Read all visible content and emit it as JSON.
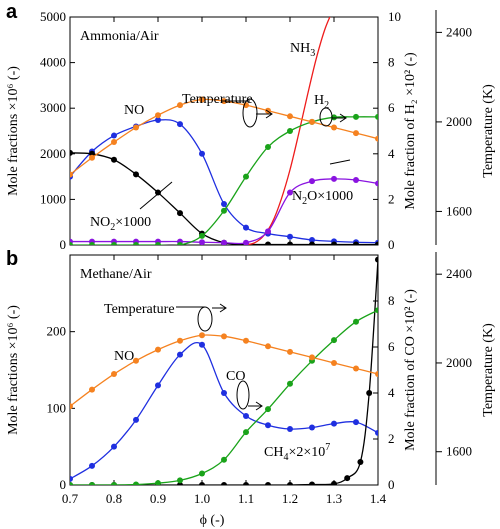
{
  "chart_data": [
    {
      "panel": "a",
      "type": "line",
      "title": "Ammonia/Air",
      "xlabel": "",
      "xlim": [
        0.7,
        1.4
      ],
      "axes": {
        "left": {
          "label": "Mole fractions ×10⁶ (-)",
          "lim": [
            0,
            5000
          ],
          "ticks": [
            0,
            1000,
            2000,
            3000,
            4000,
            5000
          ]
        },
        "right1": {
          "label": "Mole fraction of H₂ ×10² (-)",
          "lim": [
            0,
            10
          ],
          "ticks": [
            0,
            2,
            4,
            6,
            8,
            10
          ]
        },
        "right2": {
          "label": "Temperature (K)",
          "lim": [
            1450,
            2500
          ],
          "ticks": [
            1600,
            2000,
            2400
          ]
        }
      },
      "series": [
        {
          "name": "NO",
          "axis": "left",
          "color": "#1f2fe0",
          "x": [
            0.7,
            0.75,
            0.8,
            0.85,
            0.9,
            0.95,
            1.0,
            1.05,
            1.1,
            1.15,
            1.2,
            1.25,
            1.3,
            1.35,
            1.4
          ],
          "y": [
            1500,
            2050,
            2400,
            2600,
            2740,
            2650,
            2000,
            900,
            380,
            250,
            180,
            110,
            80,
            60,
            50
          ]
        },
        {
          "name": "NO2×1000",
          "axis": "left",
          "color": "#000000",
          "x": [
            0.7,
            0.75,
            0.8,
            0.85,
            0.9,
            0.95,
            1.0,
            1.05,
            1.1,
            1.15,
            1.2,
            1.25,
            1.3,
            1.35,
            1.4
          ],
          "y": [
            2020,
            2000,
            1870,
            1550,
            1150,
            700,
            250,
            50,
            15,
            10,
            10,
            10,
            10,
            10,
            10
          ]
        },
        {
          "name": "NH3",
          "axis": "left",
          "color": "#ee1c1c",
          "x": [
            1.1,
            1.12,
            1.14,
            1.16,
            1.18,
            1.2,
            1.22,
            1.24,
            1.26,
            1.28,
            1.3
          ],
          "y": [
            0,
            50,
            200,
            500,
            1000,
            1650,
            2450,
            3300,
            4100,
            4750,
            5200
          ]
        },
        {
          "name": "N2O×1000",
          "axis": "right1",
          "color": "#8a14e0",
          "x": [
            0.7,
            0.75,
            0.8,
            0.85,
            0.9,
            0.95,
            1.0,
            1.05,
            1.1,
            1.15,
            1.2,
            1.25,
            1.3,
            1.35,
            1.4
          ],
          "y": [
            0.15,
            0.15,
            0.15,
            0.15,
            0.15,
            0.15,
            0.12,
            0.1,
            0.1,
            0.6,
            2.3,
            2.8,
            2.9,
            2.85,
            2.7
          ]
        },
        {
          "name": "H2",
          "axis": "right1",
          "color": "#1aa31a",
          "x": [
            0.7,
            0.75,
            0.8,
            0.85,
            0.9,
            0.95,
            1.0,
            1.05,
            1.1,
            1.15,
            1.2,
            1.25,
            1.3,
            1.35,
            1.4
          ],
          "y": [
            0,
            0,
            0,
            0,
            0,
            0,
            0.4,
            1.5,
            3.0,
            4.3,
            5.0,
            5.4,
            5.6,
            5.62,
            5.62
          ]
        },
        {
          "name": "Temperature",
          "axis": "right2",
          "color": "#f58220",
          "x": [
            0.7,
            0.75,
            0.8,
            0.85,
            0.9,
            0.95,
            1.0,
            1.05,
            1.1,
            1.15,
            1.2,
            1.25,
            1.3,
            1.35,
            1.4
          ],
          "y": [
            1765,
            1840,
            1910,
            1975,
            2030,
            2075,
            2100,
            2093,
            2075,
            2050,
            2025,
            2000,
            1975,
            1950,
            1925
          ]
        }
      ],
      "annotations": {
        "NO": "NO",
        "NO2": {
          "pre": "NO",
          "sub": "2",
          "post": "×1000"
        },
        "NH3": {
          "pre": "NH",
          "sub": "3",
          "post": ""
        },
        "Temperature": "Temperature",
        "H2": {
          "pre": "H",
          "sub": "2",
          "post": ""
        },
        "N2O": {
          "pre": "N",
          "sub": "2",
          "post": "O×1000"
        }
      }
    },
    {
      "panel": "b",
      "type": "line",
      "title": "Methane/Air",
      "xlabel": "ϕ (-)",
      "xlim": [
        0.7,
        1.4
      ],
      "xticks": [
        "0.7",
        "0.8",
        "0.9",
        "1.0",
        "1.1",
        "1.2",
        "1.3",
        "1.4"
      ],
      "axes": {
        "left": {
          "label": "Mole fractions ×10⁶ (-)",
          "lim": [
            0,
            300
          ],
          "ticks": [
            0,
            100,
            200
          ]
        },
        "right1": {
          "label": "Mole fraction of CO ×10² (-)",
          "lim": [
            0,
            10
          ],
          "ticks": [
            0,
            2,
            4,
            6,
            8
          ]
        },
        "right2": {
          "label": "Temperature (K)",
          "lim": [
            1450,
            2500
          ],
          "ticks": [
            1600,
            2000,
            2400
          ]
        }
      },
      "series": [
        {
          "name": "NO",
          "axis": "left",
          "color": "#1f2fe0",
          "x": [
            0.7,
            0.75,
            0.8,
            0.85,
            0.9,
            0.95,
            1.0,
            1.05,
            1.1,
            1.15,
            1.2,
            1.25,
            1.3,
            1.35,
            1.4
          ],
          "y": [
            8,
            25,
            50,
            85,
            130,
            170,
            183,
            120,
            90,
            78,
            73,
            75,
            80,
            82,
            68
          ]
        },
        {
          "name": "CH4×2×10^7",
          "axis": "right1",
          "color": "#000000",
          "x": [
            0.7,
            0.75,
            0.8,
            0.85,
            0.9,
            0.95,
            1.0,
            1.05,
            1.1,
            1.15,
            1.2,
            1.25,
            1.3,
            1.33,
            1.36,
            1.38,
            1.4
          ],
          "y": [
            0,
            0,
            0,
            0,
            0,
            0,
            0,
            0,
            0,
            0,
            0,
            0.02,
            0.05,
            0.3,
            1.0,
            4.0,
            9.8
          ]
        },
        {
          "name": "CO",
          "axis": "right1",
          "color": "#1aa31a",
          "x": [
            0.7,
            0.75,
            0.8,
            0.85,
            0.9,
            0.95,
            1.0,
            1.05,
            1.1,
            1.15,
            1.2,
            1.25,
            1.3,
            1.35,
            1.4
          ],
          "y": [
            0,
            0,
            0,
            0.02,
            0.08,
            0.2,
            0.5,
            1.1,
            2.3,
            3.3,
            4.4,
            5.4,
            6.3,
            7.1,
            7.6
          ]
        },
        {
          "name": "Temperature",
          "axis": "right2",
          "color": "#f58220",
          "x": [
            0.7,
            0.75,
            0.8,
            0.85,
            0.9,
            0.95,
            1.0,
            1.05,
            1.1,
            1.15,
            1.2,
            1.25,
            1.3,
            1.35,
            1.4
          ],
          "y": [
            1805,
            1880,
            1950,
            2010,
            2060,
            2100,
            2125,
            2120,
            2100,
            2075,
            2050,
            2025,
            2000,
            1975,
            1950
          ]
        }
      ],
      "annotations": {
        "NO": "NO",
        "CO": "CO",
        "Temperature": "Temperature",
        "CH4": {
          "pre": "CH",
          "sub": "4",
          "post": "×2×10",
          "sup": "7"
        }
      }
    }
  ]
}
